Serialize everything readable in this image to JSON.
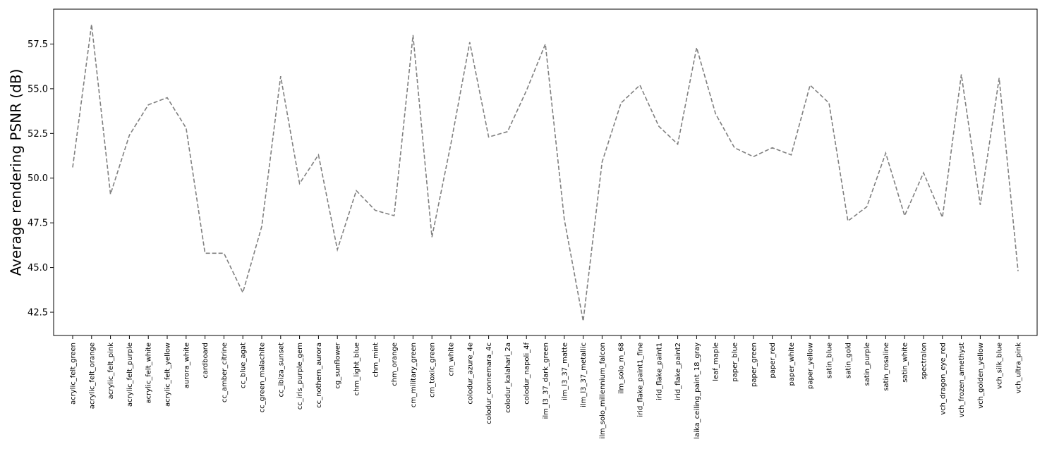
{
  "chart_data": {
    "type": "line",
    "title": "",
    "xlabel": "",
    "ylabel": "Average rendering PSNR (dB)",
    "ylim": [
      41.2,
      59.45
    ],
    "yticks": [
      42.5,
      45.0,
      47.5,
      50.0,
      52.5,
      55.0,
      57.5
    ],
    "ytick_labels": [
      "42.5",
      "45.0",
      "47.5",
      "50.0",
      "52.5",
      "55.0",
      "57.5"
    ],
    "grid": false,
    "line_color": "#808080",
    "line_style": "dashed",
    "categories": [
      "acrylic_felt_green",
      "acrylic_felt_orange",
      "acrylic_felt_pink",
      "acrylic_felt_purple",
      "acrylic_felt_white",
      "acrylic_felt_yellow",
      "aurora_white",
      "cardboard",
      "cc_amber_citrine",
      "cc_blue_agat",
      "cc_green_malachite",
      "cc_ibiza_sunset",
      "cc_iris_purple_gem",
      "cc_nothern_aurora",
      "cg_sunflower",
      "chm_light_blue",
      "chm_mint",
      "chm_orange",
      "cm_military_green",
      "cm_toxic_green",
      "cm_white",
      "colodur_azure_4e",
      "colodur_connemara_4c",
      "colodur_kalahari_2a",
      "colodur_napoli_4f",
      "ilm_l3_37_dark_green",
      "ilm_l3_37_matte",
      "ilm_l3_37_metallic",
      "ilm_solo_millennium_falcon",
      "ilm_solo_m_68",
      "irid_flake_paint1_fine",
      "irid_flake_paint1",
      "irid_flake_paint2",
      "laika_ceiling_paint_18_gray",
      "leaf_maple",
      "paper_blue",
      "paper_green",
      "paper_red",
      "paper_white",
      "paper_yellow",
      "satin_blue",
      "satin_gold",
      "satin_purple",
      "satin_rosaline",
      "satin_white",
      "spectralon",
      "vch_dragon_eye_red",
      "vch_frozen_amethyst",
      "vch_golden_yellow",
      "vch_silk_blue",
      "vch_ultra_pink"
    ],
    "values": [
      50.6,
      58.6,
      49.1,
      52.4,
      54.1,
      54.5,
      52.8,
      45.8,
      45.8,
      43.6,
      47.3,
      55.7,
      49.7,
      51.3,
      46.0,
      49.3,
      48.2,
      47.9,
      58.0,
      46.7,
      51.9,
      57.6,
      52.3,
      52.6,
      54.9,
      57.5,
      47.7,
      42.0,
      50.9,
      54.2,
      55.2,
      52.9,
      51.9,
      57.3,
      53.6,
      51.7,
      51.2,
      51.7,
      51.3,
      55.2,
      54.2,
      47.6,
      48.4,
      51.4,
      47.9,
      50.3,
      47.8,
      55.8,
      48.5,
      55.6,
      44.8
    ]
  }
}
